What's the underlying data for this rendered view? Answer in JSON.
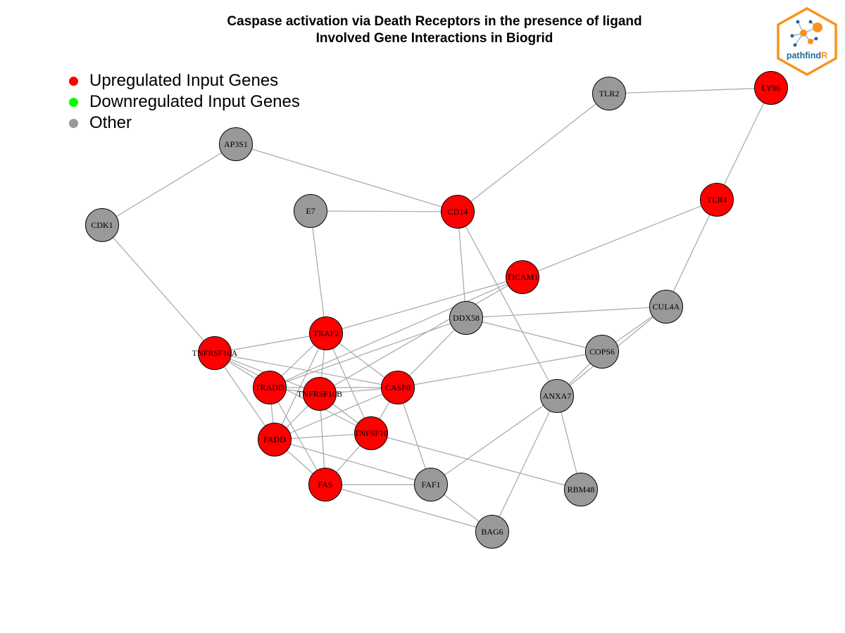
{
  "title": {
    "line1": "Caspase activation via Death Receptors in the presence of ligand",
    "line2": "Involved Gene Interactions in Biogrid"
  },
  "legend": {
    "items": [
      {
        "label": "Upregulated Input Genes",
        "color": "#ff0000"
      },
      {
        "label": "Downregulated Input Genes",
        "color": "#00ff00"
      },
      {
        "label": "Other",
        "color": "#999999"
      }
    ]
  },
  "logo": {
    "text_main": "pathfind",
    "text_accent": "R",
    "border_color": "#f7941d",
    "text_color": "#1f6b99",
    "accent_color": "#f7941d"
  },
  "colors": {
    "up": "#ff0000",
    "down": "#00ff00",
    "other": "#999999",
    "edge": "#a6a6a6"
  },
  "nodes": [
    {
      "id": "LY96",
      "type": "up"
    },
    {
      "id": "TLR2",
      "type": "other"
    },
    {
      "id": "TLR4",
      "type": "up"
    },
    {
      "id": "AP3S1",
      "type": "other"
    },
    {
      "id": "CDK1",
      "type": "other"
    },
    {
      "id": "E7",
      "type": "other"
    },
    {
      "id": "CD14",
      "type": "up"
    },
    {
      "id": "TICAM1",
      "type": "up"
    },
    {
      "id": "CUL4A",
      "type": "other"
    },
    {
      "id": "DDX58",
      "type": "other"
    },
    {
      "id": "TRAF2",
      "type": "up"
    },
    {
      "id": "TNFRSF10A",
      "type": "up"
    },
    {
      "id": "COPS6",
      "type": "other"
    },
    {
      "id": "TRADD",
      "type": "up"
    },
    {
      "id": "TNFRSF10B",
      "type": "up"
    },
    {
      "id": "CASP8",
      "type": "up"
    },
    {
      "id": "ANXA7",
      "type": "other"
    },
    {
      "id": "TNFSF10",
      "type": "up"
    },
    {
      "id": "FADD",
      "type": "up"
    },
    {
      "id": "FAS",
      "type": "up"
    },
    {
      "id": "FAF1",
      "type": "other"
    },
    {
      "id": "RBM48",
      "type": "other"
    },
    {
      "id": "BAG6",
      "type": "other"
    }
  ],
  "edges": [
    [
      "TLR2",
      "LY96"
    ],
    [
      "LY96",
      "TLR4"
    ],
    [
      "TLR2",
      "CD14"
    ],
    [
      "AP3S1",
      "CD14"
    ],
    [
      "AP3S1",
      "CDK1"
    ],
    [
      "E7",
      "CD14"
    ],
    [
      "E7",
      "TRAF2"
    ],
    [
      "CDK1",
      "TNFRSF10A"
    ],
    [
      "CD14",
      "DDX58"
    ],
    [
      "CD14",
      "ANXA7"
    ],
    [
      "TLR4",
      "TICAM1"
    ],
    [
      "TLR4",
      "CUL4A"
    ],
    [
      "TICAM1",
      "TRAF2"
    ],
    [
      "TICAM1",
      "TNFRSF10B"
    ],
    [
      "TICAM1",
      "TRADD"
    ],
    [
      "DDX58",
      "CUL4A"
    ],
    [
      "DDX58",
      "COPS6"
    ],
    [
      "DDX58",
      "TRADD"
    ],
    [
      "DDX58",
      "CASP8"
    ],
    [
      "CUL4A",
      "COPS6"
    ],
    [
      "CUL4A",
      "ANXA7"
    ],
    [
      "COPS6",
      "ANXA7"
    ],
    [
      "COPS6",
      "CASP8"
    ],
    [
      "TRAF2",
      "TNFRSF10A"
    ],
    [
      "TRAF2",
      "TRADD"
    ],
    [
      "TRAF2",
      "TNFRSF10B"
    ],
    [
      "TRAF2",
      "CASP8"
    ],
    [
      "TRAF2",
      "TNFSF10"
    ],
    [
      "TRAF2",
      "FADD"
    ],
    [
      "TNFRSF10A",
      "TRADD"
    ],
    [
      "TNFRSF10A",
      "TNFRSF10B"
    ],
    [
      "TNFRSF10A",
      "CASP8"
    ],
    [
      "TNFRSF10A",
      "FADD"
    ],
    [
      "TNFRSF10A",
      "TNFSF10"
    ],
    [
      "TRADD",
      "TNFRSF10B"
    ],
    [
      "TRADD",
      "CASP8"
    ],
    [
      "TRADD",
      "FADD"
    ],
    [
      "TRADD",
      "FAS"
    ],
    [
      "TNFRSF10B",
      "CASP8"
    ],
    [
      "TNFRSF10B",
      "FADD"
    ],
    [
      "TNFRSF10B",
      "TNFSF10"
    ],
    [
      "TNFRSF10B",
      "FAS"
    ],
    [
      "CASP8",
      "TNFSF10"
    ],
    [
      "CASP8",
      "FADD"
    ],
    [
      "CASP8",
      "FAF1"
    ],
    [
      "TNFSF10",
      "FADD"
    ],
    [
      "TNFSF10",
      "FAS"
    ],
    [
      "TNFSF10",
      "RBM48"
    ],
    [
      "FADD",
      "FAS"
    ],
    [
      "FADD",
      "FAF1"
    ],
    [
      "FAS",
      "FAF1"
    ],
    [
      "FAS",
      "BAG6"
    ],
    [
      "FAF1",
      "BAG6"
    ],
    [
      "ANXA7",
      "FAF1"
    ],
    [
      "ANXA7",
      "RBM48"
    ],
    [
      "ANXA7",
      "BAG6"
    ]
  ]
}
